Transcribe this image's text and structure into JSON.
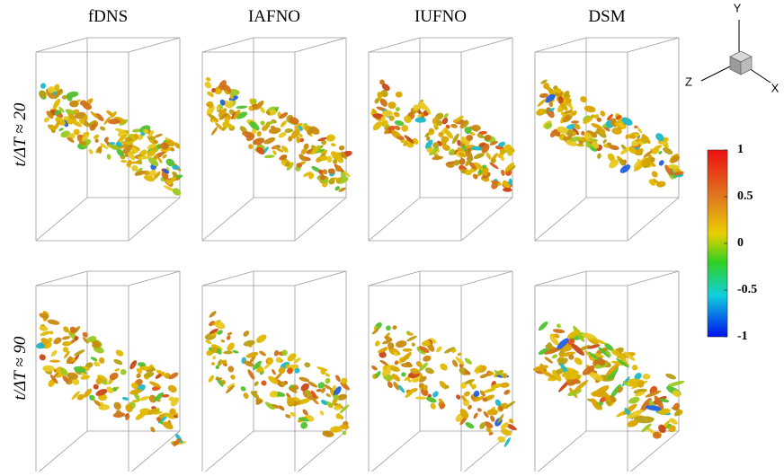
{
  "columns": [
    "fDNS",
    "IAFNO",
    "IUFNO",
    "DSM"
  ],
  "rows": [
    "t/ΔT ≈ 20",
    "t/ΔT ≈ 90"
  ],
  "colorbar": {
    "lim": [
      -1,
      1
    ],
    "ticks": [
      1,
      0.5,
      0,
      -0.5,
      -1
    ]
  },
  "axes": {
    "x": "X",
    "y": "Y",
    "z": "Z"
  }
}
